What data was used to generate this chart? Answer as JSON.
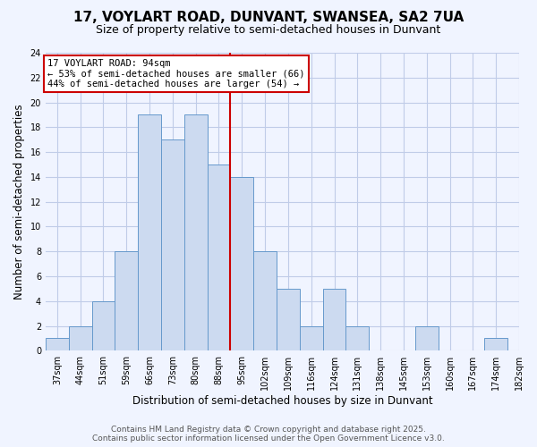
{
  "title1": "17, VOYLART ROAD, DUNVANT, SWANSEA, SA2 7UA",
  "title2": "Size of property relative to semi-detached houses in Dunvant",
  "xlabel": "Distribution of semi-detached houses by size in Dunvant",
  "ylabel": "Number of semi-detached properties",
  "bin_labels": [
    "37sqm",
    "44sqm",
    "51sqm",
    "59sqm",
    "66sqm",
    "73sqm",
    "80sqm",
    "88sqm",
    "95sqm",
    "102sqm",
    "109sqm",
    "116sqm",
    "124sqm",
    "131sqm",
    "138sqm",
    "145sqm",
    "153sqm",
    "160sqm",
    "167sqm",
    "174sqm",
    "182sqm"
  ],
  "bar_heights": [
    1,
    2,
    4,
    8,
    19,
    17,
    19,
    15,
    14,
    8,
    5,
    2,
    5,
    2,
    0,
    0,
    2,
    0,
    0,
    1
  ],
  "reference_bin_index": 8,
  "bar_color": "#ccdaf0",
  "bar_edgecolor": "#6699cc",
  "reference_line_color": "#cc0000",
  "annotation_title": "17 VOYLART ROAD: 94sqm",
  "annotation_line1": "← 53% of semi-detached houses are smaller (66)",
  "annotation_line2": "44% of semi-detached houses are larger (54) →",
  "annotation_box_edgecolor": "#cc0000",
  "ylim": [
    0,
    24
  ],
  "yticks": [
    0,
    2,
    4,
    6,
    8,
    10,
    12,
    14,
    16,
    18,
    20,
    22,
    24
  ],
  "footer1": "Contains HM Land Registry data © Crown copyright and database right 2025.",
  "footer2": "Contains public sector information licensed under the Open Government Licence v3.0.",
  "background_color": "#f0f4ff",
  "grid_color": "#c0cce8",
  "title_fontsize": 11,
  "subtitle_fontsize": 9,
  "tick_label_fontsize": 7,
  "axis_label_fontsize": 8.5,
  "footer_fontsize": 6.5,
  "annotation_fontsize": 7.5
}
